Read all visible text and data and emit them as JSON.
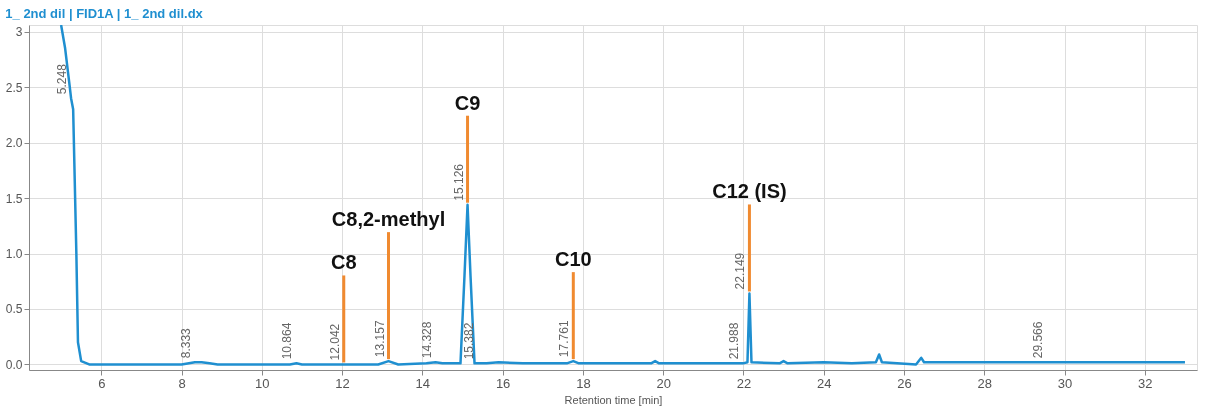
{
  "chart_data": {
    "type": "line",
    "title": "1_ 2nd dil | FID1A | 1_ 2nd dil.dx",
    "xlabel": "Retention time [min]",
    "xlim": [
      4.2,
      33.3
    ],
    "xticks": [
      6,
      8,
      10,
      12,
      14,
      16,
      18,
      20,
      22,
      24,
      26,
      28,
      30,
      32
    ],
    "ylim": [
      -0.05,
      3.06
    ],
    "yticks": [
      {
        "value": 0,
        "label": "0.0"
      },
      {
        "value": 0.5,
        "label": "0.5"
      },
      {
        "value": 1,
        "label": "1.0"
      },
      {
        "value": 1.5,
        "label": "1.5"
      },
      {
        "value": 2,
        "label": "2.0"
      },
      {
        "value": 2.5,
        "label": "2.5"
      },
      {
        "value": 3,
        "label": "3"
      }
    ],
    "grid": true,
    "marker": "none",
    "line_style": "solid",
    "x": [
      5.0,
      5.1,
      5.2,
      5.248,
      5.3,
      5.38,
      5.42,
      5.5,
      5.7,
      8.0,
      8.333,
      8.5,
      8.7,
      8.9,
      10.7,
      10.864,
      11.0,
      12.042,
      12.9,
      13.157,
      13.4,
      14.1,
      14.328,
      14.5,
      14.95,
      15.05,
      15.126,
      15.2,
      15.3,
      15.382,
      15.6,
      15.9,
      16.5,
      17.6,
      17.761,
      17.9,
      19.7,
      19.8,
      19.9,
      21.9,
      21.988,
      22.1,
      22.149,
      22.2,
      22.9,
      23.0,
      23.1,
      24.0,
      24.7,
      25.3,
      25.38,
      25.45,
      26.3,
      26.43,
      26.5,
      29.566,
      33.0
    ],
    "series": [
      {
        "color": "#1f8fd0",
        "values": [
          3.06,
          2.85,
          2.55,
          2.4,
          2.3,
          1.0,
          0.2,
          0.03,
          0.0,
          0.0,
          0.02,
          0.02,
          0.01,
          0.0,
          0.0,
          0.01,
          0.0,
          0.0,
          0.0,
          0.03,
          0.0,
          0.01,
          0.02,
          0.01,
          0.01,
          0.8,
          1.44,
          0.8,
          0.01,
          0.01,
          0.01,
          0.02,
          0.01,
          0.01,
          0.03,
          0.01,
          0.01,
          0.03,
          0.01,
          0.01,
          0.01,
          0.02,
          0.64,
          0.02,
          0.01,
          0.03,
          0.01,
          0.02,
          0.01,
          0.02,
          0.09,
          0.02,
          0.0,
          0.06,
          0.02,
          0.02,
          0.02
        ]
      }
    ],
    "annotations": [
      {
        "text": "5.248",
        "x": 5.248,
        "y": 2.4
      },
      {
        "text": "8.333",
        "x": 8.333,
        "y": 0.02
      },
      {
        "text": "10.864",
        "x": 10.864,
        "y": 0.01
      },
      {
        "text": "12.042",
        "x": 12.042,
        "y": 0.0
      },
      {
        "text": "13.157",
        "x": 13.157,
        "y": 0.03
      },
      {
        "text": "14.328",
        "x": 14.328,
        "y": 0.02
      },
      {
        "text": "15.126",
        "x": 15.126,
        "y": 1.44
      },
      {
        "text": "15.382",
        "x": 15.382,
        "y": 0.01
      },
      {
        "text": "17.761",
        "x": 17.761,
        "y": 0.03
      },
      {
        "text": "21.988",
        "x": 21.988,
        "y": 0.01
      },
      {
        "text": "22.149",
        "x": 22.149,
        "y": 0.64
      },
      {
        "text": "29.566",
        "x": 29.566,
        "y": 0.02
      },
      {
        "text": "C8",
        "x": 12.042,
        "y": 0.0
      },
      {
        "text": "C8,2-methyl",
        "x": 13.157,
        "y": 0.03
      },
      {
        "text": "C9",
        "x": 15.126,
        "y": 1.44
      },
      {
        "text": "C10",
        "x": 17.761,
        "y": 0.03
      },
      {
        "text": "C12 (IS)",
        "x": 22.149,
        "y": 0.64
      }
    ]
  }
}
